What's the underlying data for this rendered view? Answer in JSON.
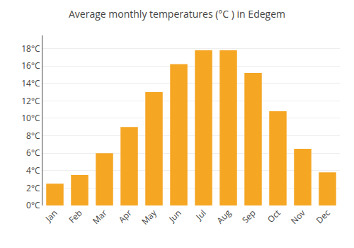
{
  "chart_data": {
    "type": "bar",
    "title": "Average monthly temperatures (°C ) in Edegem",
    "categories": [
      "Jan",
      "Feb",
      "Mar",
      "Apr",
      "May",
      "Jun",
      "Jul",
      "Aug",
      "Sep",
      "Oct",
      "Nov",
      "Dec"
    ],
    "values": [
      2.5,
      3.5,
      6.0,
      9.0,
      13.0,
      16.2,
      17.8,
      17.8,
      15.2,
      10.8,
      6.5,
      3.8
    ],
    "color": "#F5A623",
    "ylim": [
      0,
      19.5
    ],
    "yticks": [
      {
        "value": 0,
        "label": "0°C"
      },
      {
        "value": 2,
        "label": "2°C"
      },
      {
        "value": 4,
        "label": "4°C"
      },
      {
        "value": 6,
        "label": "6°C"
      },
      {
        "value": 8,
        "label": "8°C"
      },
      {
        "value": 10,
        "label": "10°C"
      },
      {
        "value": 12,
        "label": "12°C"
      },
      {
        "value": 14,
        "label": "14°C"
      },
      {
        "value": 16,
        "label": "16°C"
      },
      {
        "value": 18,
        "label": "18°C"
      }
    ],
    "grid": true
  }
}
